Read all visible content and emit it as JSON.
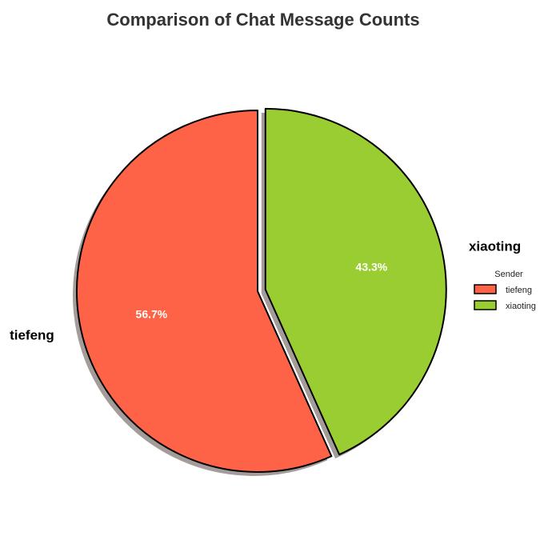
{
  "chart_data": {
    "type": "pie",
    "title": "Comparison of Chat Message Counts",
    "categories": [
      "tiefeng",
      "xiaoting"
    ],
    "values": [
      56.7,
      43.3
    ],
    "percent_labels": [
      "56.7%",
      "43.3%"
    ],
    "colors": [
      "#FF6347",
      "#9ACD32"
    ],
    "exploded": [
      false,
      true
    ],
    "shadow": true,
    "start_angle_deg": 90,
    "direction": "counterclockwise",
    "legend": {
      "title": "Sender",
      "entries": [
        "tiefeng",
        "xiaoting"
      ],
      "placement": "right"
    }
  }
}
